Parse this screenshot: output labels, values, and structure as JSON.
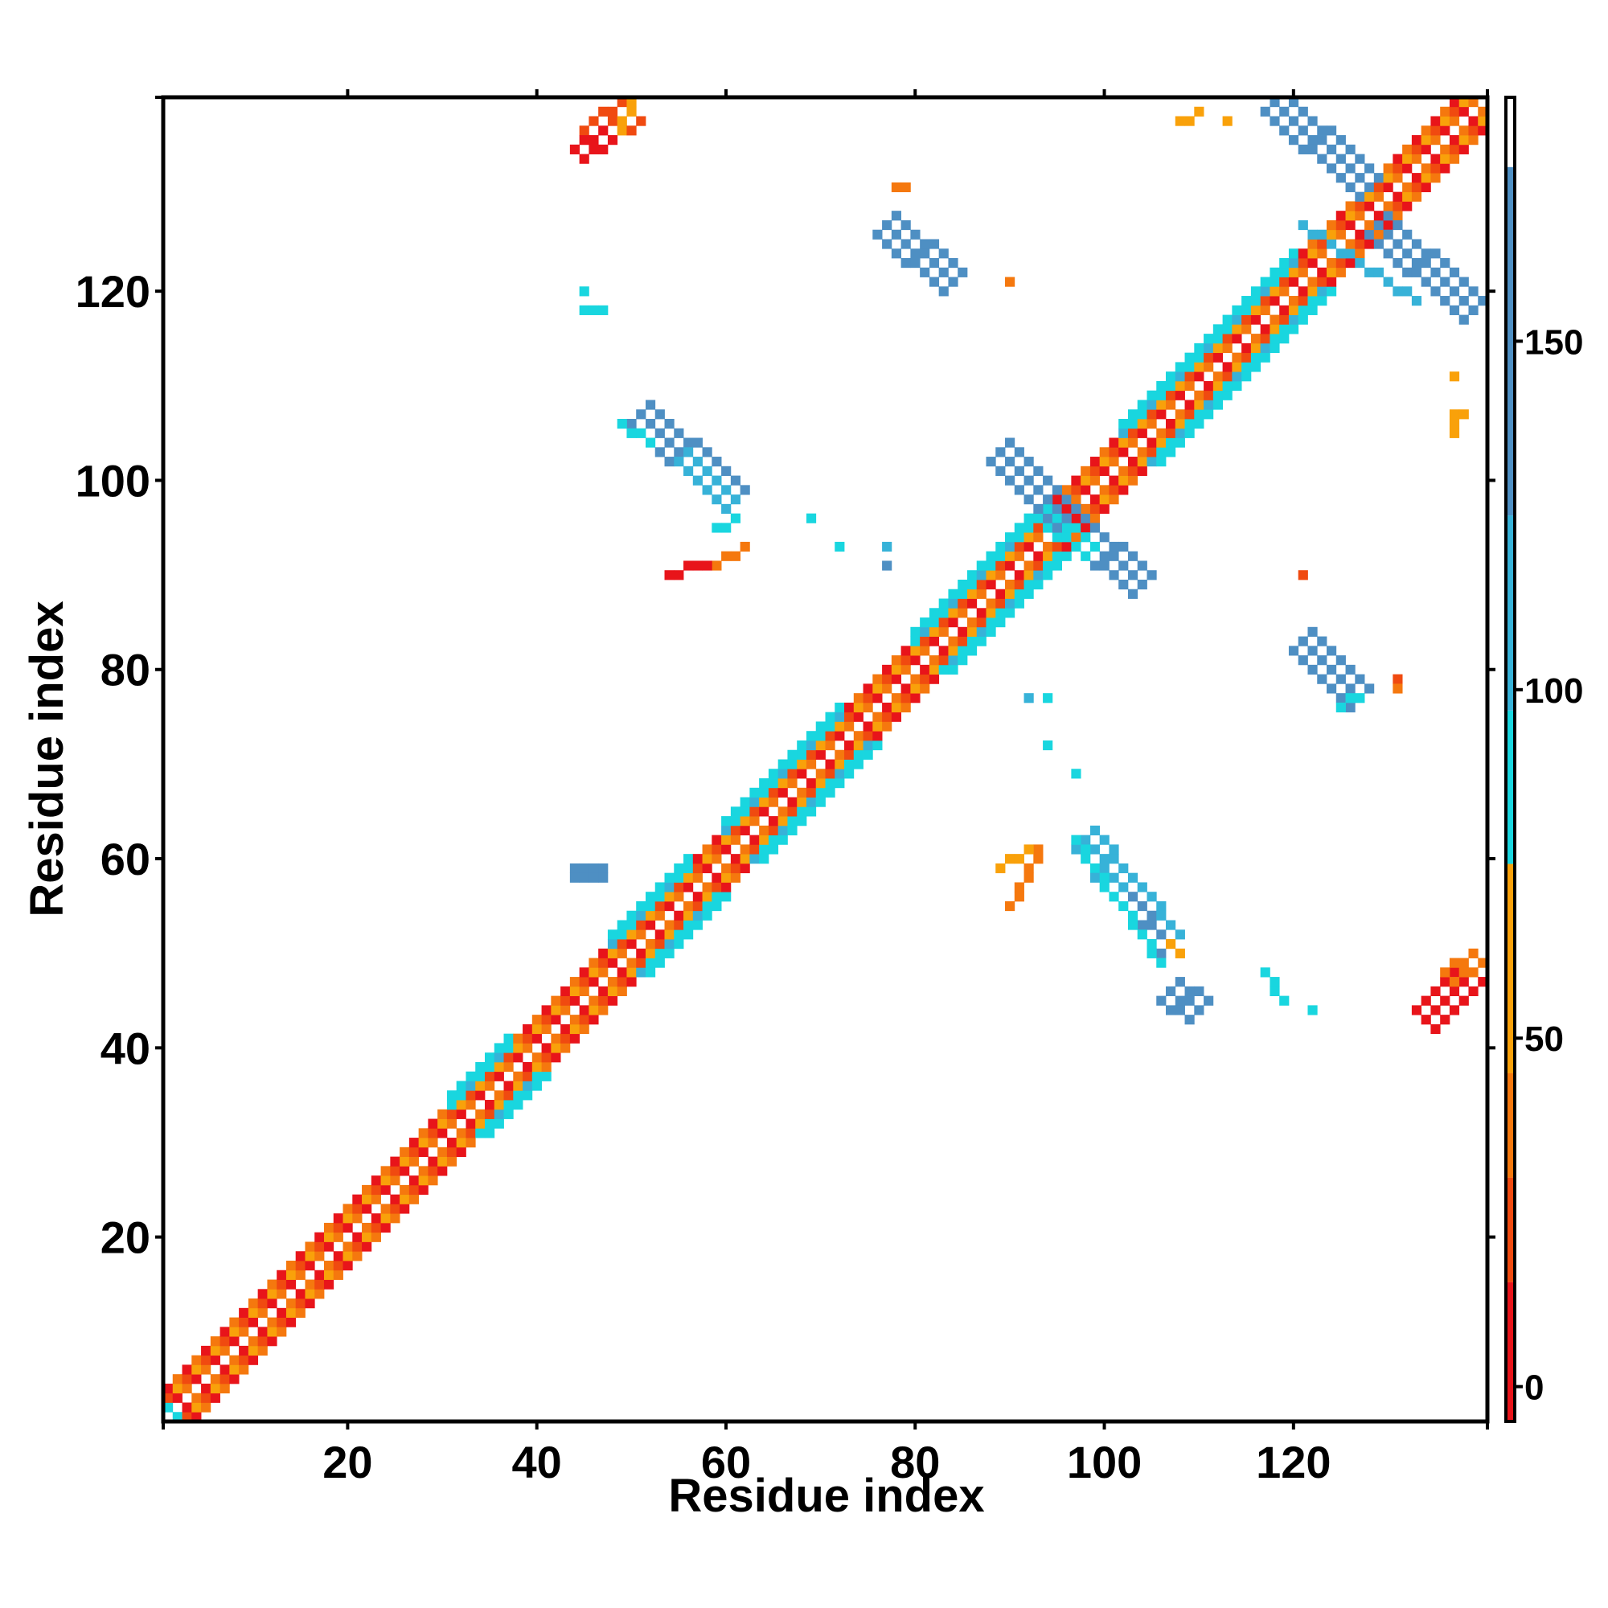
{
  "chart_data": {
    "type": "heatmap",
    "title": "",
    "xlabel": "Residue index",
    "ylabel": "Residue index",
    "xlim": [
      1,
      140
    ],
    "ylim": [
      1,
      140
    ],
    "x_ticks": [
      20,
      40,
      60,
      80,
      100,
      120
    ],
    "y_ticks": [
      20,
      40,
      60,
      80,
      100,
      120
    ],
    "colorbar": {
      "range": [
        -5,
        185
      ],
      "ticks": [
        0,
        50,
        100,
        150
      ],
      "bands": [
        {
          "from": -5,
          "to": 15,
          "color": "#e8141a"
        },
        {
          "from": 15,
          "to": 30,
          "color": "#f04a10"
        },
        {
          "from": 30,
          "to": 45,
          "color": "#f5780e"
        },
        {
          "from": 45,
          "to": 75,
          "color": "#f9a10a"
        },
        {
          "from": 75,
          "to": 97,
          "color": "#19d6df"
        },
        {
          "from": 97,
          "to": 125,
          "color": "#37b2d8"
        },
        {
          "from": 125,
          "to": 175,
          "color": "#4e8fc3"
        },
        {
          "from": 175,
          "to": 185,
          "color": "#ffffff"
        }
      ]
    },
    "colors": {
      "red": "#e8141a",
      "red_orange": "#f04a10",
      "orange": "#f5780e",
      "amber": "#f9a10a",
      "cyan": "#19d6df",
      "sky": "#37b2d8",
      "steel": "#4e8fc3"
    },
    "diagonal": {
      "length": 140,
      "near_diagonal_colors": [
        "#e8141a",
        "#f5780e",
        "#f04a10",
        "#f9a10a"
      ],
      "cyan_segments": [
        [
          31,
          37
        ],
        [
          48,
          56
        ],
        [
          60,
          72
        ],
        [
          80,
          92
        ],
        [
          102,
          120
        ]
      ]
    },
    "segments": [
      {
        "from": [
          45,
          137
        ],
        "to": [
          49,
          140
        ],
        "color": "#f04a10",
        "width": 3
      },
      {
        "from": [
          44,
          135
        ],
        "to": [
          47,
          137
        ],
        "color": "#e8141a",
        "width": 2
      },
      {
        "from": [
          49,
          137
        ],
        "to": [
          50,
          140
        ],
        "color": "#f9a10a",
        "width": 1
      },
      {
        "from": [
          106,
          45
        ],
        "to": [
          109,
          43
        ],
        "color": "#4e8fc3",
        "width": 3
      },
      {
        "from": [
          133,
          44
        ],
        "to": [
          138,
          49
        ],
        "color": "#e8141a",
        "width": 3
      },
      {
        "from": [
          136,
          48
        ],
        "to": [
          139,
          50
        ],
        "color": "#f5780e",
        "width": 2
      },
      {
        "from": [
          117,
          139
        ],
        "to": [
          127,
          130
        ],
        "color": "#4e8fc3",
        "width": 3
      },
      {
        "from": [
          128,
          126
        ],
        "to": [
          138,
          117
        ],
        "color": "#4e8fc3",
        "width": 3
      },
      {
        "from": [
          121,
          127
        ],
        "to": [
          133,
          119
        ],
        "color": "#37b2d8",
        "width": 1
      },
      {
        "from": [
          76,
          126
        ],
        "to": [
          83,
          120
        ],
        "color": "#4e8fc3",
        "width": 3
      },
      {
        "from": [
          50,
          106
        ],
        "to": [
          60,
          97
        ],
        "color": "#4e8fc3",
        "width": 3
      },
      {
        "from": [
          55,
          102
        ],
        "to": [
          60,
          97
        ],
        "color": "#37b2d8",
        "width": 2
      },
      {
        "from": [
          49,
          106
        ],
        "to": [
          52,
          104
        ],
        "color": "#19d6df",
        "width": 1
      },
      {
        "from": [
          88,
          102
        ],
        "to": [
          95,
          95
        ],
        "color": "#4e8fc3",
        "width": 3
      },
      {
        "from": [
          96,
          94
        ],
        "to": [
          103,
          88
        ],
        "color": "#4e8fc3",
        "width": 3
      },
      {
        "from": [
          93,
          96
        ],
        "to": [
          98,
          92
        ],
        "color": "#19d6df",
        "width": 2
      },
      {
        "from": [
          97,
          61
        ],
        "to": [
          106,
          50
        ],
        "color": "#37b2d8",
        "width": 3
      },
      {
        "from": [
          102,
          55
        ],
        "to": [
          106,
          50
        ],
        "color": "#4e8fc3",
        "width": 2
      },
      {
        "from": [
          97,
          62
        ],
        "to": [
          106,
          49
        ],
        "color": "#19d6df",
        "width": 1
      },
      {
        "from": [
          120,
          82
        ],
        "to": [
          126,
          76
        ],
        "color": "#4e8fc3",
        "width": 3
      },
      {
        "from": [
          125,
          76
        ],
        "to": [
          127,
          77
        ],
        "color": "#19d6df",
        "width": 1
      },
      {
        "from": [
          59,
          91
        ],
        "to": [
          62,
          93
        ],
        "color": "#f5780e",
        "width": 1
      },
      {
        "from": [
          54,
          90
        ],
        "to": [
          58,
          91
        ],
        "color": "#e8141a",
        "width": 1
      },
      {
        "from": [
          90,
          55
        ],
        "to": [
          93,
          61
        ],
        "color": "#f5780e",
        "width": 1
      },
      {
        "from": [
          89,
          59
        ],
        "to": [
          92,
          61
        ],
        "color": "#f9a10a",
        "width": 1
      },
      {
        "from": [
          107,
          51
        ],
        "to": [
          108,
          50
        ],
        "color": "#f9a10a",
        "width": 1
      },
      {
        "from": [
          117,
          48
        ],
        "to": [
          118,
          46
        ],
        "color": "#19d6df",
        "width": 1
      }
    ],
    "points": [
      [
        45,
        120,
        "#19d6df"
      ],
      [
        45,
        118,
        "#19d6df"
      ],
      [
        46,
        118,
        "#19d6df"
      ],
      [
        47,
        118,
        "#19d6df"
      ],
      [
        44,
        59,
        "#4e8fc3"
      ],
      [
        45,
        59,
        "#4e8fc3"
      ],
      [
        46,
        59,
        "#4e8fc3"
      ],
      [
        47,
        59,
        "#4e8fc3"
      ],
      [
        44,
        58,
        "#4e8fc3"
      ],
      [
        45,
        58,
        "#4e8fc3"
      ],
      [
        46,
        58,
        "#4e8fc3"
      ],
      [
        47,
        58,
        "#4e8fc3"
      ],
      [
        59,
        95,
        "#19d6df"
      ],
      [
        60,
        95,
        "#19d6df"
      ],
      [
        61,
        96,
        "#19d6df"
      ],
      [
        69,
        96,
        "#19d6df"
      ],
      [
        72,
        93,
        "#19d6df"
      ],
      [
        77,
        93,
        "#37b2d8"
      ],
      [
        77,
        91,
        "#4e8fc3"
      ],
      [
        78,
        131,
        "#f5780e"
      ],
      [
        79,
        131,
        "#f5780e"
      ],
      [
        90,
        121,
        "#f5780e"
      ],
      [
        92,
        77,
        "#37b2d8"
      ],
      [
        94,
        77,
        "#19d6df"
      ],
      [
        94,
        72,
        "#19d6df"
      ],
      [
        97,
        69,
        "#19d6df"
      ],
      [
        108,
        138,
        "#f9a10a"
      ],
      [
        109,
        138,
        "#f9a10a"
      ],
      [
        110,
        139,
        "#f9a10a"
      ],
      [
        113,
        138,
        "#f9a10a"
      ],
      [
        121,
        90,
        "#f04a10"
      ],
      [
        131,
        79,
        "#f04a10"
      ],
      [
        131,
        78,
        "#f5780e"
      ],
      [
        137,
        111,
        "#f9a10a"
      ],
      [
        137,
        106,
        "#f9a10a"
      ],
      [
        137,
        107,
        "#f9a10a"
      ],
      [
        138,
        107,
        "#f9a10a"
      ],
      [
        137,
        105,
        "#f9a10a"
      ],
      [
        119,
        45,
        "#19d6df"
      ],
      [
        122,
        44,
        "#19d6df"
      ],
      [
        1,
        2,
        "#19d6df"
      ],
      [
        2,
        1,
        "#19d6df"
      ]
    ]
  }
}
